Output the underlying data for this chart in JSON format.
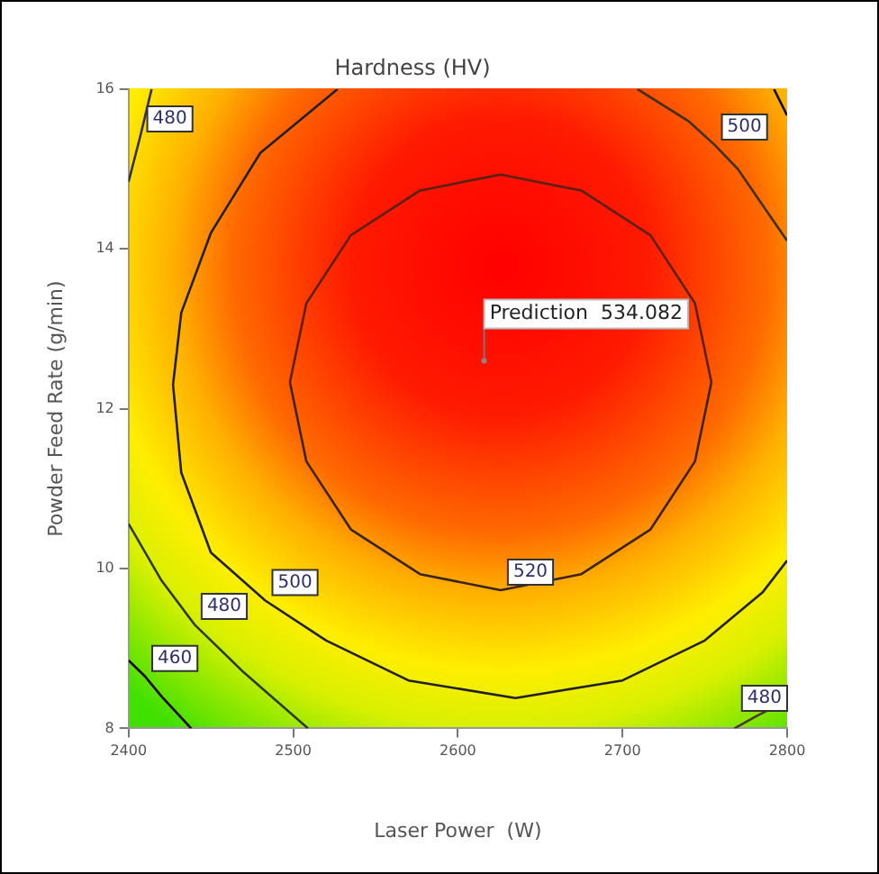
{
  "chart_data": {
    "type": "line",
    "title": "Hardness (HV)",
    "xlabel": "Laser Power  (W)",
    "ylabel": "Powder Feed Rate (g/min)",
    "xlim": [
      2400,
      2800
    ],
    "xticks": [
      2400,
      2500,
      2600,
      2700,
      2800
    ],
    "ylim": [
      8,
      16
    ],
    "yticks": [
      8,
      10,
      12,
      14,
      16
    ],
    "marker": "none",
    "series": [
      {
        "color": "#5a2010",
        "x": [
          2754,
          2744,
          2717,
          2675,
          2626,
          2577,
          2535,
          2508,
          2498
        ],
        "values": [
          12.33,
          13.32,
          14.17,
          14.73,
          14.93,
          14.73,
          14.17,
          13.32,
          12.33
        ]
      },
      {
        "name": "520",
        "color": "#3a2418",
        "x": [
          2498,
          2508,
          2535,
          2577,
          2626,
          2675,
          2717,
          2744,
          2754
        ],
        "values": [
          12.33,
          11.34,
          10.49,
          9.93,
          9.73,
          9.93,
          10.49,
          11.34,
          12.33
        ]
      },
      {
        "name": "500",
        "color": "#202020",
        "x": [
          2527,
          2480,
          2450,
          2432,
          2427,
          2432,
          2450,
          2483,
          2520,
          2570,
          2635,
          2700,
          2750,
          2785,
          2800
        ],
        "values": [
          16,
          15.2,
          14.2,
          13.2,
          12.3,
          11.2,
          10.2,
          9.6,
          9.1,
          8.6,
          8.38,
          8.6,
          9.1,
          9.7,
          10.1
        ]
      },
      {
        "name": "500",
        "color": "#403018",
        "x": [
          2800,
          2770,
          2756,
          2740,
          2709
        ],
        "values": [
          14.1,
          15,
          15.3,
          15.6,
          16
        ]
      },
      {
        "name": "480",
        "color": "#303040",
        "x": [
          2400,
          2407,
          2414
        ],
        "values": [
          14.84,
          15.4,
          16
        ]
      },
      {
        "color": "#101010",
        "x": [
          2792,
          2800
        ],
        "values": [
          16,
          15.67
        ]
      },
      {
        "name": "480",
        "color": "#2a3a20",
        "x": [
          2400,
          2420,
          2440,
          2470,
          2509
        ],
        "values": [
          10.56,
          9.85,
          9.3,
          8.7,
          8
        ]
      },
      {
        "name": "480",
        "color": "#4a3a30",
        "x": [
          2768,
          2781,
          2800
        ],
        "values": [
          8,
          8.15,
          8.35
        ]
      },
      {
        "name": "460",
        "color": "#000000",
        "x": [
          2400,
          2410,
          2420,
          2438
        ],
        "values": [
          8.85,
          8.65,
          8.4,
          8
        ]
      }
    ],
    "annotations": [
      {
        "text": "Prediction  534.082",
        "x": 2616,
        "y": 12.6
      }
    ]
  }
}
